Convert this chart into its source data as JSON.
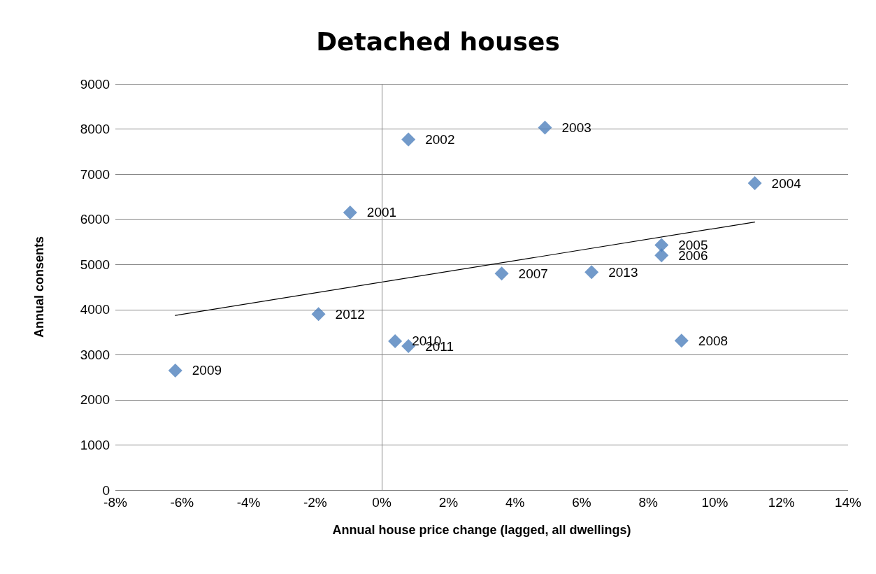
{
  "chart_data": {
    "type": "scatter",
    "title": "Detached houses",
    "xlabel": "Annual house price change (lagged, all dwellings)",
    "ylabel": "Annual consents",
    "series": [
      {
        "color": "#4f81bd",
        "marker": "diamond",
        "x": [
          -0.95,
          0.8,
          4.9,
          11.2,
          8.4,
          8.4,
          3.6,
          9.0,
          -6.2,
          0.4,
          0.8,
          -1.9,
          6.3
        ],
        "values": [
          6150,
          7770,
          8030,
          6800,
          5430,
          5200,
          4800,
          3310,
          2650,
          3300,
          3190,
          3900,
          4830
        ]
      },
      {
        "type": "line",
        "color": "#000000",
        "marker": "none",
        "x": [
          -6.2,
          11.2
        ],
        "values": [
          3870,
          5940
        ]
      }
    ],
    "annotations": [
      {
        "text": "2001",
        "x": -0.95,
        "y": 6150
      },
      {
        "text": "2002",
        "x": 0.8,
        "y": 7770
      },
      {
        "text": "2003",
        "x": 4.9,
        "y": 8030
      },
      {
        "text": "2004",
        "x": 11.2,
        "y": 6800
      },
      {
        "text": "2005",
        "x": 8.4,
        "y": 5430
      },
      {
        "text": "2006",
        "x": 8.4,
        "y": 5200
      },
      {
        "text": "2007",
        "x": 3.6,
        "y": 4800
      },
      {
        "text": "2008",
        "x": 9.0,
        "y": 3310
      },
      {
        "text": "2009",
        "x": -6.2,
        "y": 2650
      },
      {
        "text": "2010",
        "x": 0.4,
        "y": 3300
      },
      {
        "text": "2011",
        "x": 0.8,
        "y": 3190
      },
      {
        "text": "2012",
        "x": -1.9,
        "y": 3900
      },
      {
        "text": "2013",
        "x": 6.3,
        "y": 4830
      }
    ],
    "xlim": [
      -8,
      14
    ],
    "xticks": [
      {
        "value": -8,
        "label": "-8%"
      },
      {
        "value": -6,
        "label": "-6%"
      },
      {
        "value": -4,
        "label": "-4%"
      },
      {
        "value": -2,
        "label": "-2%"
      },
      {
        "value": 0,
        "label": "0%"
      },
      {
        "value": 2,
        "label": "2%"
      },
      {
        "value": 4,
        "label": "4%"
      },
      {
        "value": 6,
        "label": "6%"
      },
      {
        "value": 8,
        "label": "8%"
      },
      {
        "value": 10,
        "label": "10%"
      },
      {
        "value": 12,
        "label": "12%"
      },
      {
        "value": 14,
        "label": "14%"
      }
    ],
    "ylim": [
      0,
      9000
    ],
    "yticks": [
      0,
      1000,
      2000,
      3000,
      4000,
      5000,
      6000,
      7000,
      8000,
      9000
    ],
    "grid": "y",
    "ref_lines": [
      {
        "axis": "x",
        "value": 0,
        "color": "#868686"
      }
    ]
  }
}
